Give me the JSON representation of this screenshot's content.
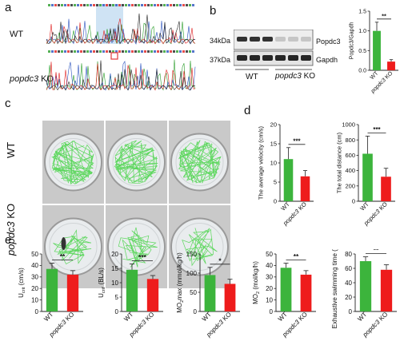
{
  "panels": {
    "a": "a",
    "b": "b",
    "c": "c",
    "d": "d",
    "e": "e"
  },
  "colors": {
    "wt": "#3cb43c",
    "ko": "#ee1c1c",
    "seq_highlight": "#cfe3f4",
    "box": "#e23b3b"
  },
  "panel_a": {
    "wt_label": "WT",
    "ko_label_italic": "popdc3",
    "ko_label_suffix": " KO"
  },
  "panel_b": {
    "marker_top": "34kDa",
    "marker_bottom": "37kDa",
    "band_top": "Popdc3",
    "band_bottom": "Gapdh",
    "lane_wt": "WT",
    "lane_ko_italic": "popdc3",
    "lane_ko_suffix": " KO"
  },
  "panel_c": {
    "wt_label": "WT",
    "ko_label_italic": "popdc3",
    "ko_label_suffix": " KO"
  },
  "chart_data": [
    {
      "id": "b-quant",
      "type": "bar",
      "categories": [
        "WT",
        "popdc3 KO"
      ],
      "values": [
        1.0,
        0.22
      ],
      "errors": [
        0.22,
        0.05
      ],
      "ylabel": "Popdc3/Gapdh",
      "ylim": [
        0,
        1.5
      ],
      "yticks": [
        "0.0",
        "0.5",
        "1.0",
        "1.5"
      ],
      "significance": "**"
    },
    {
      "id": "d-velocity",
      "type": "bar",
      "categories": [
        "WT",
        "popdc3 KO"
      ],
      "values": [
        11,
        6.5
      ],
      "errors": [
        3,
        1.5
      ],
      "ylabel": "The average velocity (cm/s)",
      "ylim": [
        0,
        20
      ],
      "yticks": [
        "0",
        "5",
        "10",
        "15",
        "20"
      ],
      "significance": "***"
    },
    {
      "id": "d-distance",
      "type": "bar",
      "categories": [
        "WT",
        "popdc3 KO"
      ],
      "values": [
        620,
        320
      ],
      "errors": [
        230,
        110
      ],
      "ylabel": "The total distance (cm)",
      "ylim": [
        0,
        1000
      ],
      "yticks": [
        "0",
        "200",
        "400",
        "600",
        "800",
        "1000"
      ],
      "significance": "***"
    },
    {
      "id": "e-ucrit",
      "type": "bar",
      "categories": [
        "WT",
        "popdc3 KO"
      ],
      "values": [
        37,
        32
      ],
      "errors": [
        5,
        3.5
      ],
      "ylabel_main": "U",
      "ylabel_sub": "crit",
      "ylabel_rest": " (cm/s)",
      "ylim": [
        0,
        50
      ],
      "yticks": [
        "0",
        "10",
        "20",
        "30",
        "40",
        "50"
      ],
      "significance": "**"
    },
    {
      "id": "e-ucrit-bl",
      "type": "bar",
      "categories": [
        "WT",
        "popdc3 KO"
      ],
      "values": [
        14.5,
        11.3
      ],
      "errors": [
        2,
        1.2
      ],
      "ylabel_main": "U",
      "ylabel_sub": "crit'",
      "ylabel_rest": " (BL/s)",
      "ylim": [
        0,
        20
      ],
      "yticks": [
        "0",
        "5",
        "10",
        "15",
        "20"
      ],
      "significance": "***"
    },
    {
      "id": "e-mo2max",
      "type": "bar",
      "categories": [
        "WT",
        "popdc3 KO"
      ],
      "values": [
        95,
        72
      ],
      "errors": [
        20,
        12
      ],
      "ylabel_main": "MO",
      "ylabel_sub": "2",
      "ylabel_rest": "max (mmol/kg/h)",
      "ylim": [
        0,
        150
      ],
      "yticks": [
        "0",
        "50",
        "100",
        "150"
      ],
      "significance": "*"
    },
    {
      "id": "e-mo2",
      "type": "bar",
      "categories": [
        "WT",
        "popdc3 KO"
      ],
      "values": [
        38,
        32
      ],
      "errors": [
        4,
        3.5
      ],
      "ylabel_main": "MO",
      "ylabel_sub": "2",
      "ylabel_rest": " (mol/kg/h)",
      "ylim": [
        0,
        50
      ],
      "yticks": [
        "0",
        "10",
        "20",
        "30",
        "40",
        "50"
      ],
      "significance": "**"
    },
    {
      "id": "e-exhaustive",
      "type": "bar",
      "categories": [
        "WT",
        "popdc3 KO"
      ],
      "values": [
        70,
        58
      ],
      "errors": [
        6,
        7
      ],
      "ylabel": "Exhaustive swimming time (min)",
      "ylim": [
        0,
        80
      ],
      "yticks": [
        "0",
        "20",
        "40",
        "60",
        "80"
      ],
      "significance": "**"
    }
  ]
}
